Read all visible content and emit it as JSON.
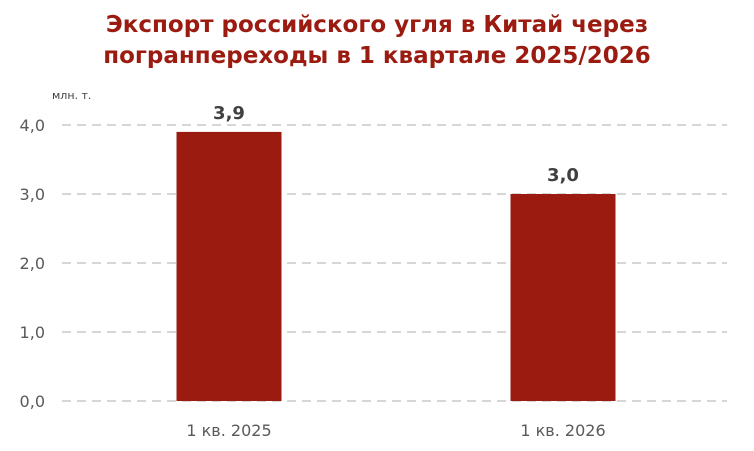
{
  "chart_data": {
    "type": "bar",
    "title_line1": "Экспорт российского угля в Китай через",
    "title_line2": "погранпереходы в 1 квартале 2025/2026",
    "unit_label": "млн. т.",
    "categories": [
      "1 кв. 2025",
      "1 кв. 2026"
    ],
    "values": [
      3.9,
      3.0
    ],
    "value_labels": [
      "3,9",
      "3,0"
    ],
    "yticks": [
      0,
      1,
      2,
      3,
      4
    ],
    "ytick_labels": [
      "0,0",
      "1,0",
      "2,0",
      "3,0",
      "4,0"
    ],
    "ylim": [
      0,
      4
    ],
    "grid": true,
    "bar_color": "#9b1b10",
    "title_color": "#9b1b10",
    "grid_color": "#c8c8c8",
    "tick_color": "#595959",
    "label_color": "#404040"
  }
}
